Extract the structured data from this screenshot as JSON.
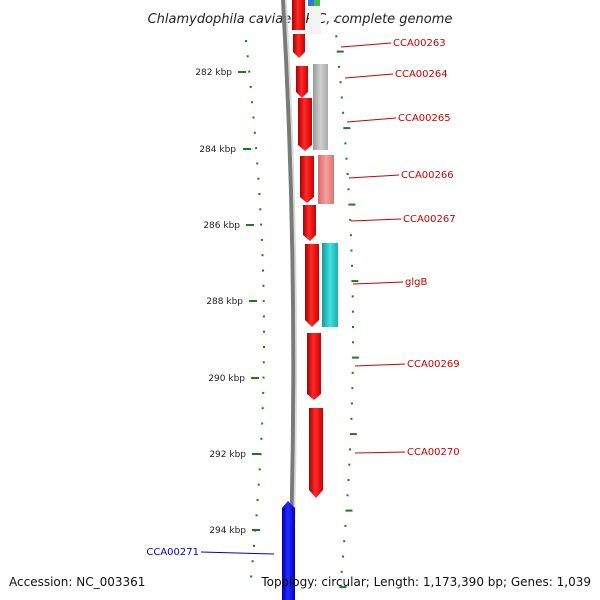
{
  "title": "Chlamydophila caviae GPIC, complete genome",
  "footer": {
    "accession": "Accession: NC_003361",
    "topology": "Topology: circular; Length: 1,173,390 bp; Genes: 1,039"
  },
  "scale_labels": [
    "282 kbp",
    "284 kbp",
    "286 kbp",
    "288 kbp",
    "290 kbp",
    "292 kbp",
    "294 kbp"
  ],
  "colors": {
    "forward_strand": "#ff0000",
    "reverse_strand": "#0000ff",
    "label_forward": "#cc0000",
    "label_reverse": "#0000cc",
    "tick": "#1f7a1f",
    "backbone": "#808080",
    "similarity_grey": "#bbbbbb",
    "similarity_pink": "#ee8080",
    "similarity_cyan": "#22cccc"
  },
  "genes": [
    {
      "label": "CCA00263",
      "strand": "forward"
    },
    {
      "label": "CCA00264",
      "strand": "forward"
    },
    {
      "label": "CCA00265",
      "strand": "forward"
    },
    {
      "label": "CCA00266",
      "strand": "forward"
    },
    {
      "label": "CCA00267",
      "strand": "forward"
    },
    {
      "label": "glgB",
      "strand": "forward"
    },
    {
      "label": "CCA00269",
      "strand": "forward"
    },
    {
      "label": "CCA00270",
      "strand": "forward"
    },
    {
      "label": "CCA00271",
      "strand": "reverse"
    }
  ]
}
